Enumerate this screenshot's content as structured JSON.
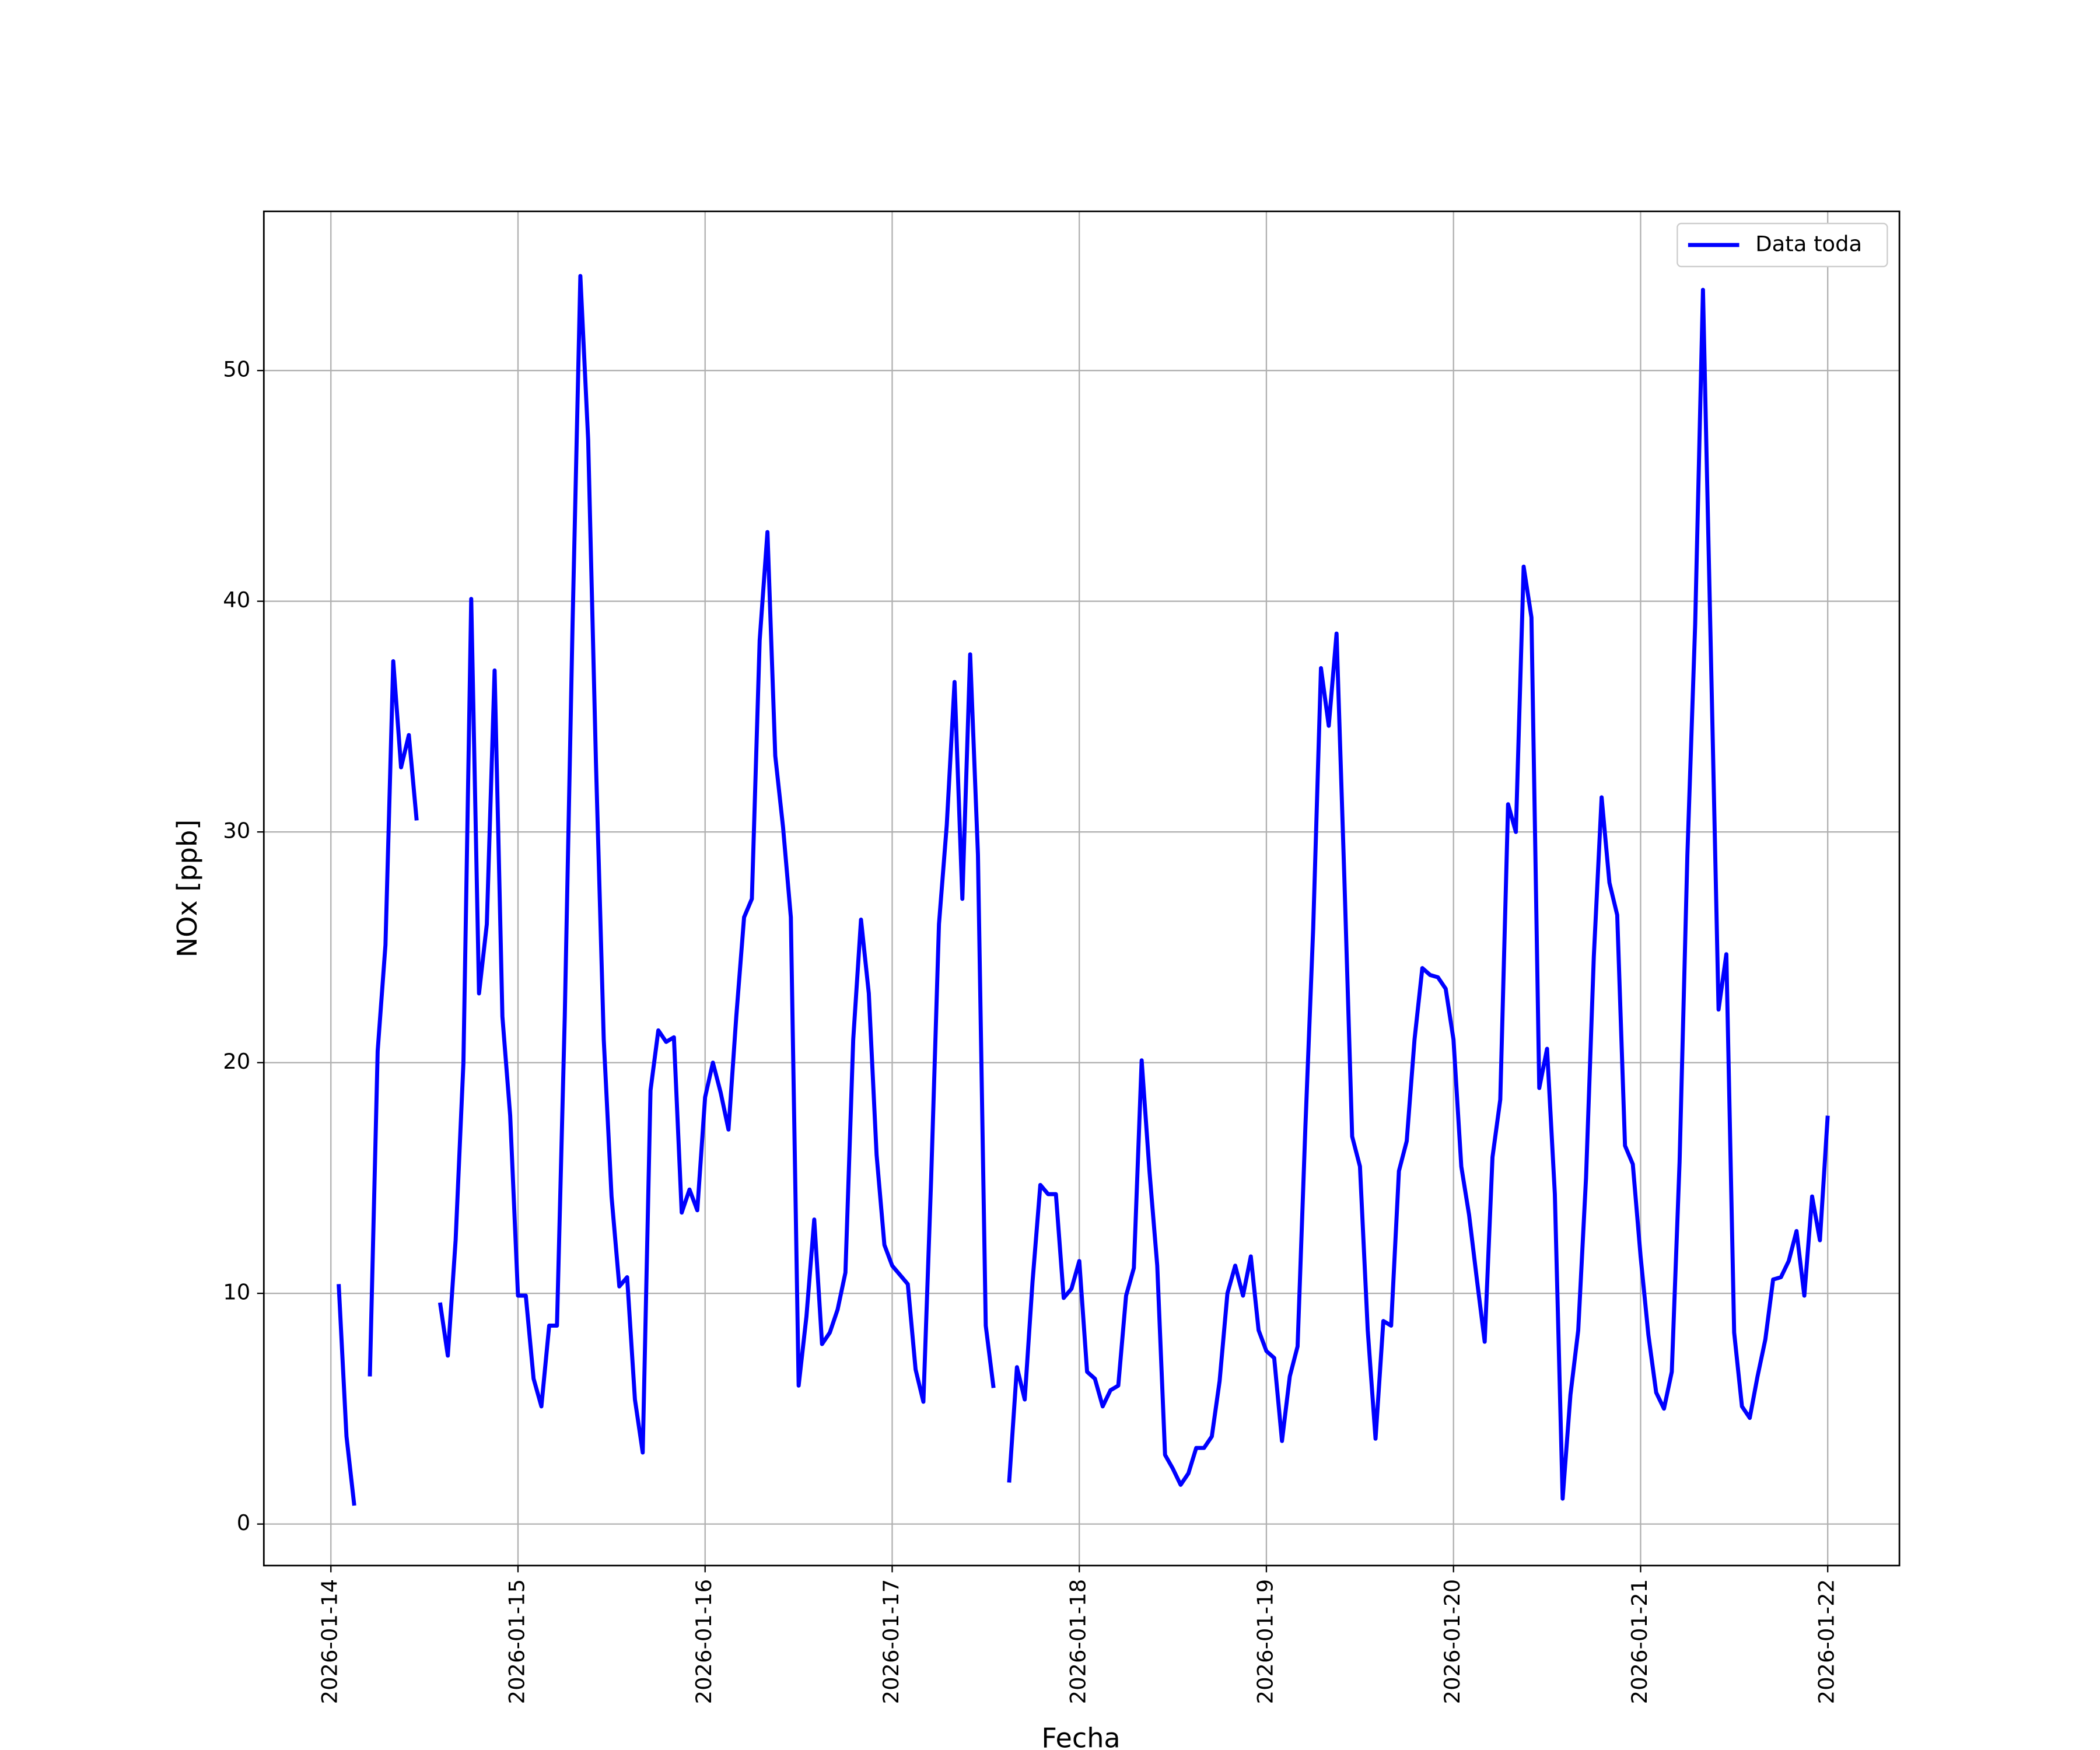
{
  "chart_data": {
    "type": "line",
    "x_label": "Fecha",
    "y_label": "NOx [ppb]",
    "x": [
      1,
      2,
      3,
      4,
      5,
      6,
      7,
      8,
      9,
      10,
      11,
      12,
      13,
      14,
      15,
      16,
      17,
      18,
      19,
      20,
      21,
      22,
      23,
      24,
      25,
      26,
      27,
      28,
      29,
      30,
      31,
      32,
      33,
      34,
      35,
      36,
      37,
      38,
      39,
      40,
      41,
      42,
      43,
      44,
      45,
      46,
      47,
      48,
      49,
      50,
      51,
      52,
      53,
      54,
      55,
      56,
      57,
      58,
      59,
      60,
      61,
      62,
      63,
      64,
      65,
      66,
      67,
      68,
      69,
      70,
      71,
      72,
      73,
      74,
      75,
      76,
      77,
      78,
      79,
      80,
      81,
      82,
      83,
      84,
      85,
      86,
      87,
      88,
      89,
      90,
      91,
      92,
      93,
      94,
      95,
      96,
      97,
      98,
      99,
      100,
      101,
      102,
      103,
      104,
      105,
      106,
      107,
      108,
      109,
      110,
      111,
      112,
      113,
      114,
      115,
      116,
      117,
      118,
      119,
      120,
      121,
      122,
      123,
      124,
      125,
      126,
      127,
      128,
      129,
      130,
      131,
      132,
      133,
      134,
      135,
      136,
      137,
      138,
      139,
      140,
      141,
      142,
      143,
      144,
      145,
      146,
      147,
      148,
      149,
      150,
      151,
      152,
      153,
      154,
      155,
      156,
      157,
      158,
      159,
      160,
      161,
      162,
      163,
      164,
      165,
      166,
      167,
      168,
      169,
      170,
      171,
      172,
      173,
      174,
      175,
      176,
      177,
      178,
      179,
      180,
      181,
      182,
      183,
      184,
      185,
      186,
      187,
      188,
      189,
      190,
      191,
      192
    ],
    "series": [
      {
        "name": "Data toda",
        "color": "#0000ff",
        "values": [
          10.4,
          3.8,
          0.8,
          null,
          6.4,
          20.5,
          25.1,
          37.4,
          32.8,
          34.2,
          30.5,
          null,
          null,
          9.6,
          7.3,
          12.3,
          20,
          40.1,
          23,
          26,
          37,
          22,
          17.7,
          9.9,
          9.9,
          6.3,
          5.1,
          8.6,
          8.6,
          22,
          39,
          54.1,
          47,
          33,
          21,
          14.2,
          10.3,
          10.7,
          5.4,
          3.1,
          18.8,
          21.4,
          20.9,
          21.1,
          13.5,
          14.5,
          13.6,
          18.5,
          20,
          18.7,
          17.1,
          22,
          26.3,
          27.1,
          38.3,
          43,
          33.3,
          30.2,
          26.3,
          6,
          9,
          13.2,
          7.8,
          8.3,
          9.3,
          10.9,
          21,
          26.2,
          23,
          16,
          12.1,
          11.2,
          10.8,
          10.4,
          6.7,
          5.3,
          15,
          26,
          30.3,
          36.5,
          27.1,
          37.7,
          29,
          8.6,
          5.9,
          null,
          1.8,
          6.8,
          5.4,
          10.5,
          14.7,
          14.3,
          14.3,
          9.8,
          10.2,
          11.4,
          6.6,
          6.3,
          5.1,
          5.8,
          6,
          9.9,
          11.1,
          20.1,
          15.3,
          11.2,
          3,
          2.4,
          1.7,
          2.2,
          3.3,
          3.3,
          3.8,
          6.2,
          10,
          11.2,
          9.9,
          11.6,
          8.4,
          7.5,
          7.2,
          3.6,
          6.4,
          7.7,
          17.2,
          25.8,
          37.1,
          34.6,
          38.6,
          28,
          16.8,
          15.5,
          8.4,
          3.7,
          8.8,
          8.6,
          15.3,
          16.6,
          21,
          24.1,
          23.8,
          23.7,
          23.2,
          21,
          15.5,
          13.4,
          10.6,
          7.9,
          15.9,
          18.4,
          31.2,
          30,
          41.5,
          39.3,
          18.9,
          20.6,
          14.3,
          1.1,
          5.6,
          8.4,
          15,
          24.6,
          31.5,
          27.8,
          26.4,
          16.4,
          15.6,
          11.6,
          8.2,
          5.7,
          5,
          6.6,
          15.7,
          29,
          39,
          53.5,
          38,
          22.3,
          24.7,
          8.3,
          5.1,
          4.6,
          6.4,
          8,
          10.6,
          10.7,
          11.4,
          12.7,
          9.9,
          14.2,
          12.3,
          17.7
        ]
      }
    ],
    "xlim": [
      -8.6,
      201.2
    ],
    "xticks": [
      {
        "value": 0,
        "label": "2026-01-14"
      },
      {
        "value": 24,
        "label": "2026-01-15"
      },
      {
        "value": 48,
        "label": "2026-01-16"
      },
      {
        "value": 72,
        "label": "2026-01-17"
      },
      {
        "value": 96,
        "label": "2026-01-18"
      },
      {
        "value": 120,
        "label": "2026-01-19"
      },
      {
        "value": 144,
        "label": "2026-01-20"
      },
      {
        "value": 168,
        "label": "2026-01-21"
      },
      {
        "value": 192,
        "label": "2026-01-22"
      }
    ],
    "ylim": [
      -1.8,
      56.9
    ],
    "yticks": [
      0,
      10,
      20,
      30,
      40,
      50
    ],
    "grid": true,
    "legend": "upper right"
  }
}
